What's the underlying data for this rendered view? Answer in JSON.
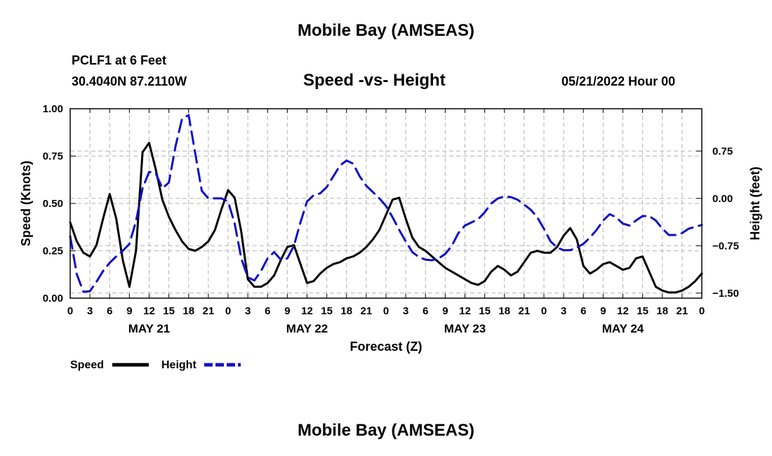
{
  "page": {
    "title_top": "Mobile Bay (AMSEAS)",
    "station": "PCLF1 at 6 Feet",
    "coords": "30.4040N  87.2110W",
    "subtitle": "Speed -vs- Height",
    "datetime": "05/21/2022 Hour 00",
    "title_bottom": "Mobile Bay (AMSEAS)"
  },
  "chart_data": {
    "type": "line",
    "title": "Speed -vs- Height",
    "xlabel": "Forecast (Z)",
    "ylabel": "Speed (Knots)",
    "ylabel_right": "Height (feet)",
    "xlim": [
      0,
      96
    ],
    "ylim": [
      0,
      1
    ],
    "ylim_right": [
      -1.58,
      1.42
    ],
    "x_ticks": [
      0,
      3,
      6,
      9,
      12,
      15,
      18,
      21,
      24,
      27,
      30,
      33,
      36,
      39,
      42,
      45,
      48,
      51,
      54,
      57,
      60,
      63,
      66,
      69,
      72,
      75,
      78,
      81,
      84,
      87,
      90,
      93,
      96
    ],
    "x_tick_labels": [
      "0",
      "3",
      "6",
      "9",
      "12",
      "15",
      "18",
      "21",
      "0",
      "3",
      "6",
      "9",
      "12",
      "15",
      "18",
      "21",
      "0",
      "3",
      "6",
      "9",
      "12",
      "15",
      "18",
      "21",
      "0",
      "3",
      "6",
      "9",
      "12",
      "15",
      "18",
      "21",
      "0"
    ],
    "day_labels": [
      {
        "label": "MAY 21",
        "x": 12
      },
      {
        "label": "MAY 22",
        "x": 36
      },
      {
        "label": "MAY 23",
        "x": 60
      },
      {
        "label": "MAY 24",
        "x": 84
      }
    ],
    "y_ticks": [
      0,
      0.25,
      0.5,
      0.75,
      1.0
    ],
    "y_tick_labels": [
      "0.00",
      "0.25",
      "0.50",
      "0.75",
      "1.00"
    ],
    "y_ticks_right": [
      -1.5,
      -0.75,
      0,
      0.75
    ],
    "y_tick_labels_right": [
      "-1.50",
      "-0.75",
      "0.00",
      "0.75"
    ],
    "grid": true,
    "legend": [
      {
        "name": "Speed",
        "color": "#000000",
        "style": "solid"
      },
      {
        "name": "Height",
        "color": "#1010c8",
        "style": "dashed"
      }
    ],
    "series": [
      {
        "name": "Speed",
        "axis": "left",
        "color": "#000000",
        "x": [
          0,
          1,
          2,
          3,
          4,
          5,
          6,
          7,
          8,
          9,
          10,
          11,
          12,
          13,
          14,
          15,
          16,
          17,
          18,
          19,
          20,
          21,
          22,
          23,
          24,
          25,
          26,
          27,
          28,
          29,
          30,
          31,
          32,
          33,
          34,
          35,
          36,
          37,
          38,
          39,
          40,
          41,
          42,
          43,
          44,
          45,
          46,
          47,
          48,
          49,
          50,
          51,
          52,
          53,
          54,
          55,
          56,
          57,
          58,
          59,
          60,
          61,
          62,
          63,
          64,
          65,
          66,
          67,
          68,
          69,
          70,
          71,
          72,
          73,
          74,
          75,
          76,
          77,
          78,
          79,
          80,
          81,
          82,
          83,
          84,
          85,
          86,
          87,
          88,
          89,
          90,
          91,
          92,
          93,
          94,
          95,
          96
        ],
        "values": [
          0.4,
          0.3,
          0.24,
          0.22,
          0.28,
          0.42,
          0.55,
          0.42,
          0.2,
          0.06,
          0.25,
          0.77,
          0.82,
          0.68,
          0.52,
          0.43,
          0.36,
          0.3,
          0.26,
          0.25,
          0.27,
          0.3,
          0.36,
          0.47,
          0.57,
          0.53,
          0.35,
          0.1,
          0.06,
          0.06,
          0.08,
          0.12,
          0.2,
          0.27,
          0.28,
          0.18,
          0.08,
          0.09,
          0.13,
          0.16,
          0.18,
          0.19,
          0.21,
          0.22,
          0.24,
          0.27,
          0.31,
          0.36,
          0.44,
          0.52,
          0.53,
          0.42,
          0.32,
          0.27,
          0.25,
          0.22,
          0.19,
          0.16,
          0.14,
          0.12,
          0.1,
          0.08,
          0.07,
          0.09,
          0.14,
          0.17,
          0.15,
          0.12,
          0.14,
          0.19,
          0.24,
          0.25,
          0.24,
          0.24,
          0.27,
          0.33,
          0.37,
          0.31,
          0.17,
          0.13,
          0.15,
          0.18,
          0.19,
          0.17,
          0.15,
          0.16,
          0.21,
          0.22,
          0.14,
          0.06,
          0.04,
          0.03,
          0.03,
          0.04,
          0.06,
          0.09,
          0.13
        ]
      },
      {
        "name": "Height",
        "axis": "right",
        "color": "#1010c8",
        "x": [
          0,
          1,
          2,
          3,
          4,
          5,
          6,
          7,
          8,
          9,
          10,
          11,
          12,
          13,
          14,
          15,
          16,
          17,
          18,
          19,
          20,
          21,
          22,
          23,
          24,
          25,
          26,
          27,
          28,
          29,
          30,
          31,
          32,
          33,
          34,
          35,
          36,
          37,
          38,
          39,
          40,
          41,
          42,
          43,
          44,
          45,
          46,
          47,
          48,
          49,
          50,
          51,
          52,
          53,
          54,
          55,
          56,
          57,
          58,
          59,
          60,
          61,
          62,
          63,
          64,
          65,
          66,
          67,
          68,
          69,
          70,
          71,
          72,
          73,
          74,
          75,
          76,
          77,
          78,
          79,
          80,
          81,
          82,
          83,
          84,
          85,
          86,
          87,
          88,
          89,
          90,
          91,
          92,
          93,
          94,
          95,
          96
        ],
        "values": [
          -0.6,
          -1.2,
          -1.48,
          -1.47,
          -1.32,
          -1.15,
          -1.02,
          -0.92,
          -0.83,
          -0.72,
          -0.36,
          0.16,
          0.42,
          0.4,
          0.16,
          0.25,
          0.82,
          1.26,
          1.32,
          0.72,
          0.12,
          0.0,
          0.0,
          0.0,
          -0.05,
          -0.4,
          -0.95,
          -1.25,
          -1.3,
          -1.15,
          -0.95,
          -0.85,
          -0.97,
          -0.95,
          -0.75,
          -0.38,
          -0.05,
          0.05,
          0.08,
          0.18,
          0.35,
          0.52,
          0.6,
          0.55,
          0.35,
          0.2,
          0.1,
          0.0,
          -0.12,
          -0.3,
          -0.5,
          -0.68,
          -0.85,
          -0.93,
          -0.97,
          -0.98,
          -0.95,
          -0.88,
          -0.75,
          -0.55,
          -0.43,
          -0.38,
          -0.33,
          -0.22,
          -0.08,
          0.0,
          0.03,
          0.02,
          -0.02,
          -0.1,
          -0.18,
          -0.3,
          -0.48,
          -0.68,
          -0.78,
          -0.82,
          -0.82,
          -0.78,
          -0.72,
          -0.62,
          -0.5,
          -0.35,
          -0.25,
          -0.3,
          -0.4,
          -0.43,
          -0.35,
          -0.28,
          -0.28,
          -0.35,
          -0.48,
          -0.58,
          -0.58,
          -0.55,
          -0.48,
          -0.45,
          -0.42
        ]
      }
    ]
  }
}
